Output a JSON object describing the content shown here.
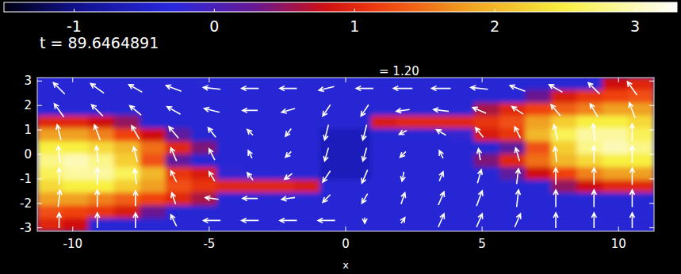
{
  "chart_data": {
    "type": "heatmap",
    "title": "= 1.20",
    "annotations": [
      "t = 89.6464891"
    ],
    "x_label": "x",
    "xlim": [
      -11.3,
      11.3
    ],
    "ylim": [
      -3.14,
      3.14
    ],
    "xticks": [
      -10,
      -5,
      0,
      5,
      10
    ],
    "yticks": [
      -3,
      -2,
      -1,
      0,
      1,
      2,
      3
    ],
    "color_range": [
      -1.5,
      3.3
    ],
    "color_ticks": [
      -1,
      0,
      1,
      2,
      3
    ],
    "x": [
      -10.83,
      -9.89,
      -8.95,
      -8.01,
      -7.06,
      -6.12,
      -5.18,
      -4.24,
      -3.3,
      -2.35,
      -1.41,
      -0.47,
      0.47,
      1.41,
      2.35,
      3.3,
      4.24,
      5.18,
      6.12,
      7.06,
      8.01,
      8.95,
      9.89,
      10.83
    ],
    "y": [
      2.88,
      2.36,
      1.83,
      1.31,
      0.79,
      0.26,
      -0.26,
      -0.79,
      -1.31,
      -1.83,
      -2.36,
      -2.88
    ],
    "cells": [
      [
        -0.4,
        -0.4,
        -0.4,
        -0.4,
        -0.4,
        -0.4,
        -0.4,
        -0.4,
        -0.4,
        -0.4,
        -0.4,
        -0.4,
        -0.4,
        -0.4,
        -0.4,
        -0.4,
        -0.4,
        -0.4,
        -0.4,
        -0.4,
        -0.4,
        -0.4,
        0.8,
        1.0
      ],
      [
        -0.4,
        -0.4,
        -0.4,
        -0.4,
        -0.4,
        -0.4,
        -0.4,
        -0.4,
        -0.4,
        -0.4,
        -0.4,
        -0.4,
        -0.4,
        -0.4,
        -0.4,
        -0.4,
        -0.4,
        -0.4,
        -0.4,
        0.3,
        0.9,
        1.1,
        1.2,
        1.3
      ],
      [
        -0.4,
        -0.4,
        -0.4,
        -0.4,
        -0.4,
        -0.4,
        -0.4,
        -0.4,
        -0.4,
        -0.4,
        -0.4,
        -0.4,
        -0.4,
        -0.4,
        -0.4,
        -0.4,
        -0.4,
        0.6,
        1.0,
        1.2,
        1.4,
        1.6,
        1.8,
        1.8
      ],
      [
        1.0,
        1.0,
        0.8,
        0.5,
        -0.4,
        -0.4,
        -0.4,
        -0.4,
        -0.4,
        -0.4,
        -0.4,
        -0.4,
        -0.4,
        0.9,
        1.0,
        1.0,
        1.0,
        1.1,
        1.3,
        1.8,
        2.2,
        2.5,
        2.5,
        2.3
      ],
      [
        1.8,
        1.8,
        1.6,
        1.2,
        0.8,
        0.2,
        -0.4,
        -0.4,
        -0.4,
        -0.4,
        -0.4,
        -0.6,
        -0.6,
        -0.4,
        -0.4,
        -0.4,
        -0.2,
        0.9,
        1.1,
        2.0,
        2.6,
        2.9,
        2.9,
        2.6
      ],
      [
        2.5,
        2.5,
        2.3,
        2.0,
        1.5,
        1.0,
        0.4,
        -0.4,
        -0.4,
        -0.4,
        -0.4,
        -0.6,
        -0.6,
        -0.4,
        -0.4,
        -0.4,
        -0.4,
        -0.4,
        0.2,
        1.3,
        2.2,
        2.8,
        3.0,
        2.8
      ],
      [
        2.8,
        3.0,
        2.8,
        2.2,
        1.3,
        0.2,
        -0.4,
        -0.4,
        -0.4,
        -0.4,
        -0.4,
        -0.6,
        -0.6,
        -0.4,
        -0.4,
        -0.4,
        -0.4,
        0.4,
        1.0,
        1.5,
        2.0,
        2.3,
        2.5,
        2.5
      ],
      [
        2.6,
        2.9,
        2.9,
        2.6,
        2.0,
        1.1,
        0.9,
        -0.2,
        -0.4,
        -0.4,
        -0.4,
        -0.6,
        -0.6,
        -0.4,
        -0.4,
        -0.4,
        -0.4,
        -0.4,
        0.2,
        0.8,
        1.2,
        1.6,
        1.8,
        1.8
      ],
      [
        2.3,
        2.5,
        2.5,
        2.2,
        1.8,
        1.3,
        1.1,
        1.0,
        1.0,
        1.0,
        0.9,
        -0.4,
        -0.4,
        -0.4,
        -0.4,
        -0.4,
        -0.4,
        -0.4,
        -0.4,
        -0.4,
        0.5,
        0.8,
        1.0,
        1.0
      ],
      [
        1.8,
        1.8,
        1.6,
        1.4,
        1.2,
        1.0,
        0.6,
        -0.4,
        -0.4,
        -0.4,
        -0.4,
        -0.4,
        -0.4,
        -0.4,
        -0.4,
        -0.4,
        -0.4,
        -0.4,
        -0.4,
        -0.4,
        -0.4,
        -0.4,
        -0.4,
        -0.4
      ],
      [
        1.3,
        1.2,
        1.1,
        0.9,
        0.3,
        -0.4,
        -0.4,
        -0.4,
        -0.4,
        -0.4,
        -0.4,
        -0.4,
        -0.4,
        -0.4,
        -0.4,
        -0.4,
        -0.4,
        -0.4,
        -0.4,
        -0.4,
        -0.4,
        -0.4,
        -0.4,
        -0.4
      ],
      [
        1.0,
        0.8,
        -0.4,
        -0.4,
        -0.4,
        -0.4,
        -0.4,
        -0.4,
        -0.4,
        -0.4,
        -0.4,
        -0.4,
        -0.4,
        -0.4,
        -0.4,
        -0.4,
        -0.4,
        -0.4,
        -0.4,
        -0.4,
        -0.4,
        -0.4,
        -0.4,
        -0.4
      ]
    ],
    "vectors": {
      "x": [
        -10.5,
        -9.1,
        -7.7,
        -6.3,
        -4.9,
        -3.5,
        -2.1,
        -0.7,
        0.7,
        2.1,
        3.5,
        4.9,
        6.3,
        7.7,
        9.1,
        10.5
      ],
      "y": [
        -2.7,
        -1.8,
        -0.9,
        0,
        0.9,
        1.8,
        2.7
      ],
      "u": [
        [
          0,
          0,
          0,
          -0.3,
          -0.9,
          -0.9,
          -0.9,
          -0.9,
          0,
          0.2,
          0.3,
          0.3,
          0.3,
          0,
          0,
          0
        ],
        [
          0.1,
          0,
          0,
          -0.2,
          -0.7,
          -0.8,
          -0.7,
          -0.4,
          -0.3,
          0.2,
          0.3,
          0.3,
          0.1,
          0,
          0,
          0
        ],
        [
          0,
          0,
          -0.1,
          -0.3,
          -0.3,
          -0.3,
          -0.4,
          -0.4,
          -0.3,
          -0.1,
          0.2,
          0.2,
          0.1,
          0,
          0,
          0
        ],
        [
          -0.1,
          -0.1,
          -0.2,
          -0.3,
          -0.3,
          -0.2,
          -0.3,
          -0.2,
          -0.2,
          -0.3,
          -0.2,
          -0.1,
          -0.2,
          -0.1,
          0,
          0
        ],
        [
          -0.2,
          -0.3,
          -0.4,
          -0.5,
          -0.4,
          -0.3,
          -0.3,
          -0.2,
          -0.2,
          -0.4,
          -0.5,
          -0.4,
          -0.3,
          -0.2,
          -0.1,
          0
        ],
        [
          -0.5,
          -0.6,
          -0.6,
          -0.7,
          -0.8,
          -0.8,
          -0.7,
          -0.4,
          -0.4,
          -0.7,
          -0.8,
          -0.7,
          -0.6,
          -0.5,
          -0.4,
          -0.3
        ],
        [
          -0.6,
          -0.7,
          -0.7,
          -0.8,
          -0.9,
          -0.9,
          -0.9,
          -0.8,
          -0.9,
          -1,
          -1,
          -0.9,
          -0.8,
          -0.7,
          -0.6,
          -0.5
        ]
      ],
      "v": [
        [
          0.8,
          0.8,
          0.8,
          0.6,
          0,
          0,
          0,
          0,
          -0.3,
          0.3,
          0.7,
          0.7,
          0.7,
          0.8,
          0.8,
          0.8
        ],
        [
          0.9,
          0.9,
          0.8,
          0.6,
          0.1,
          0,
          -0.1,
          -0.4,
          -0.5,
          0.6,
          0.7,
          0.8,
          0.9,
          0.9,
          0.9,
          0.9
        ],
        [
          0.9,
          0.9,
          0.8,
          0.6,
          0.5,
          0.4,
          -0.3,
          -0.6,
          -0.7,
          -0.5,
          0.5,
          0.7,
          0.8,
          0.9,
          0.9,
          0.9
        ],
        [
          0.9,
          0.9,
          0.8,
          0.7,
          0.6,
          0.4,
          -0.3,
          -0.7,
          -0.7,
          -0.3,
          0.4,
          0.6,
          0.7,
          0.8,
          0.9,
          0.9
        ],
        [
          0.8,
          0.8,
          0.7,
          0.6,
          0.5,
          0.3,
          -0.4,
          -0.8,
          -0.8,
          -0.2,
          0.3,
          0.5,
          0.6,
          0.8,
          0.9,
          0.9
        ],
        [
          0.7,
          0.6,
          0.5,
          0.4,
          0.2,
          0,
          -0.2,
          -0.6,
          -0.6,
          -0.1,
          0.1,
          0.3,
          0.4,
          0.6,
          0.7,
          0.8
        ],
        [
          0.6,
          0.5,
          0.4,
          0.3,
          0.1,
          0,
          0,
          -0.2,
          0,
          0,
          0,
          0.1,
          0.3,
          0.4,
          0.6,
          0.7
        ]
      ]
    }
  }
}
